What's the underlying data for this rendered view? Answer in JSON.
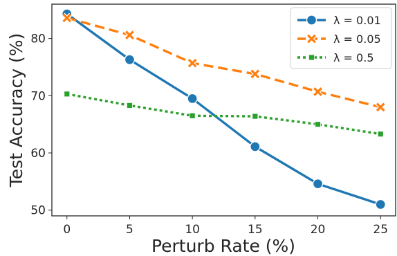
{
  "chart_data": {
    "type": "line",
    "title": "",
    "xlabel": "Perturb Rate (%)",
    "ylabel": "Test Accuracy (%)",
    "x": [
      0,
      5,
      10,
      15,
      20,
      25
    ],
    "x_ticks": [
      "0",
      "5",
      "10",
      "15",
      "20",
      "25"
    ],
    "y_ticks": [
      "50",
      "60",
      "70",
      "80"
    ],
    "xlim": [
      -1.2,
      26.2
    ],
    "ylim": [
      49.0,
      86.0
    ],
    "grid": false,
    "legend_position": "top-right",
    "series": [
      {
        "name": "λ = 0.01",
        "color": "#1f77b4",
        "linestyle": "solid",
        "marker": "circle",
        "values": [
          84.3,
          76.3,
          69.5,
          61.1,
          54.6,
          51.0
        ]
      },
      {
        "name": "λ = 0.05",
        "color": "#ff7f0e",
        "linestyle": "dashed",
        "marker": "x",
        "values": [
          83.6,
          80.6,
          75.7,
          73.8,
          70.7,
          68.0
        ]
      },
      {
        "name": "λ = 0.5",
        "color": "#2ca02c",
        "linestyle": "dotted",
        "marker": "square",
        "values": [
          70.3,
          68.3,
          66.5,
          66.4,
          65.0,
          63.3
        ]
      }
    ]
  }
}
